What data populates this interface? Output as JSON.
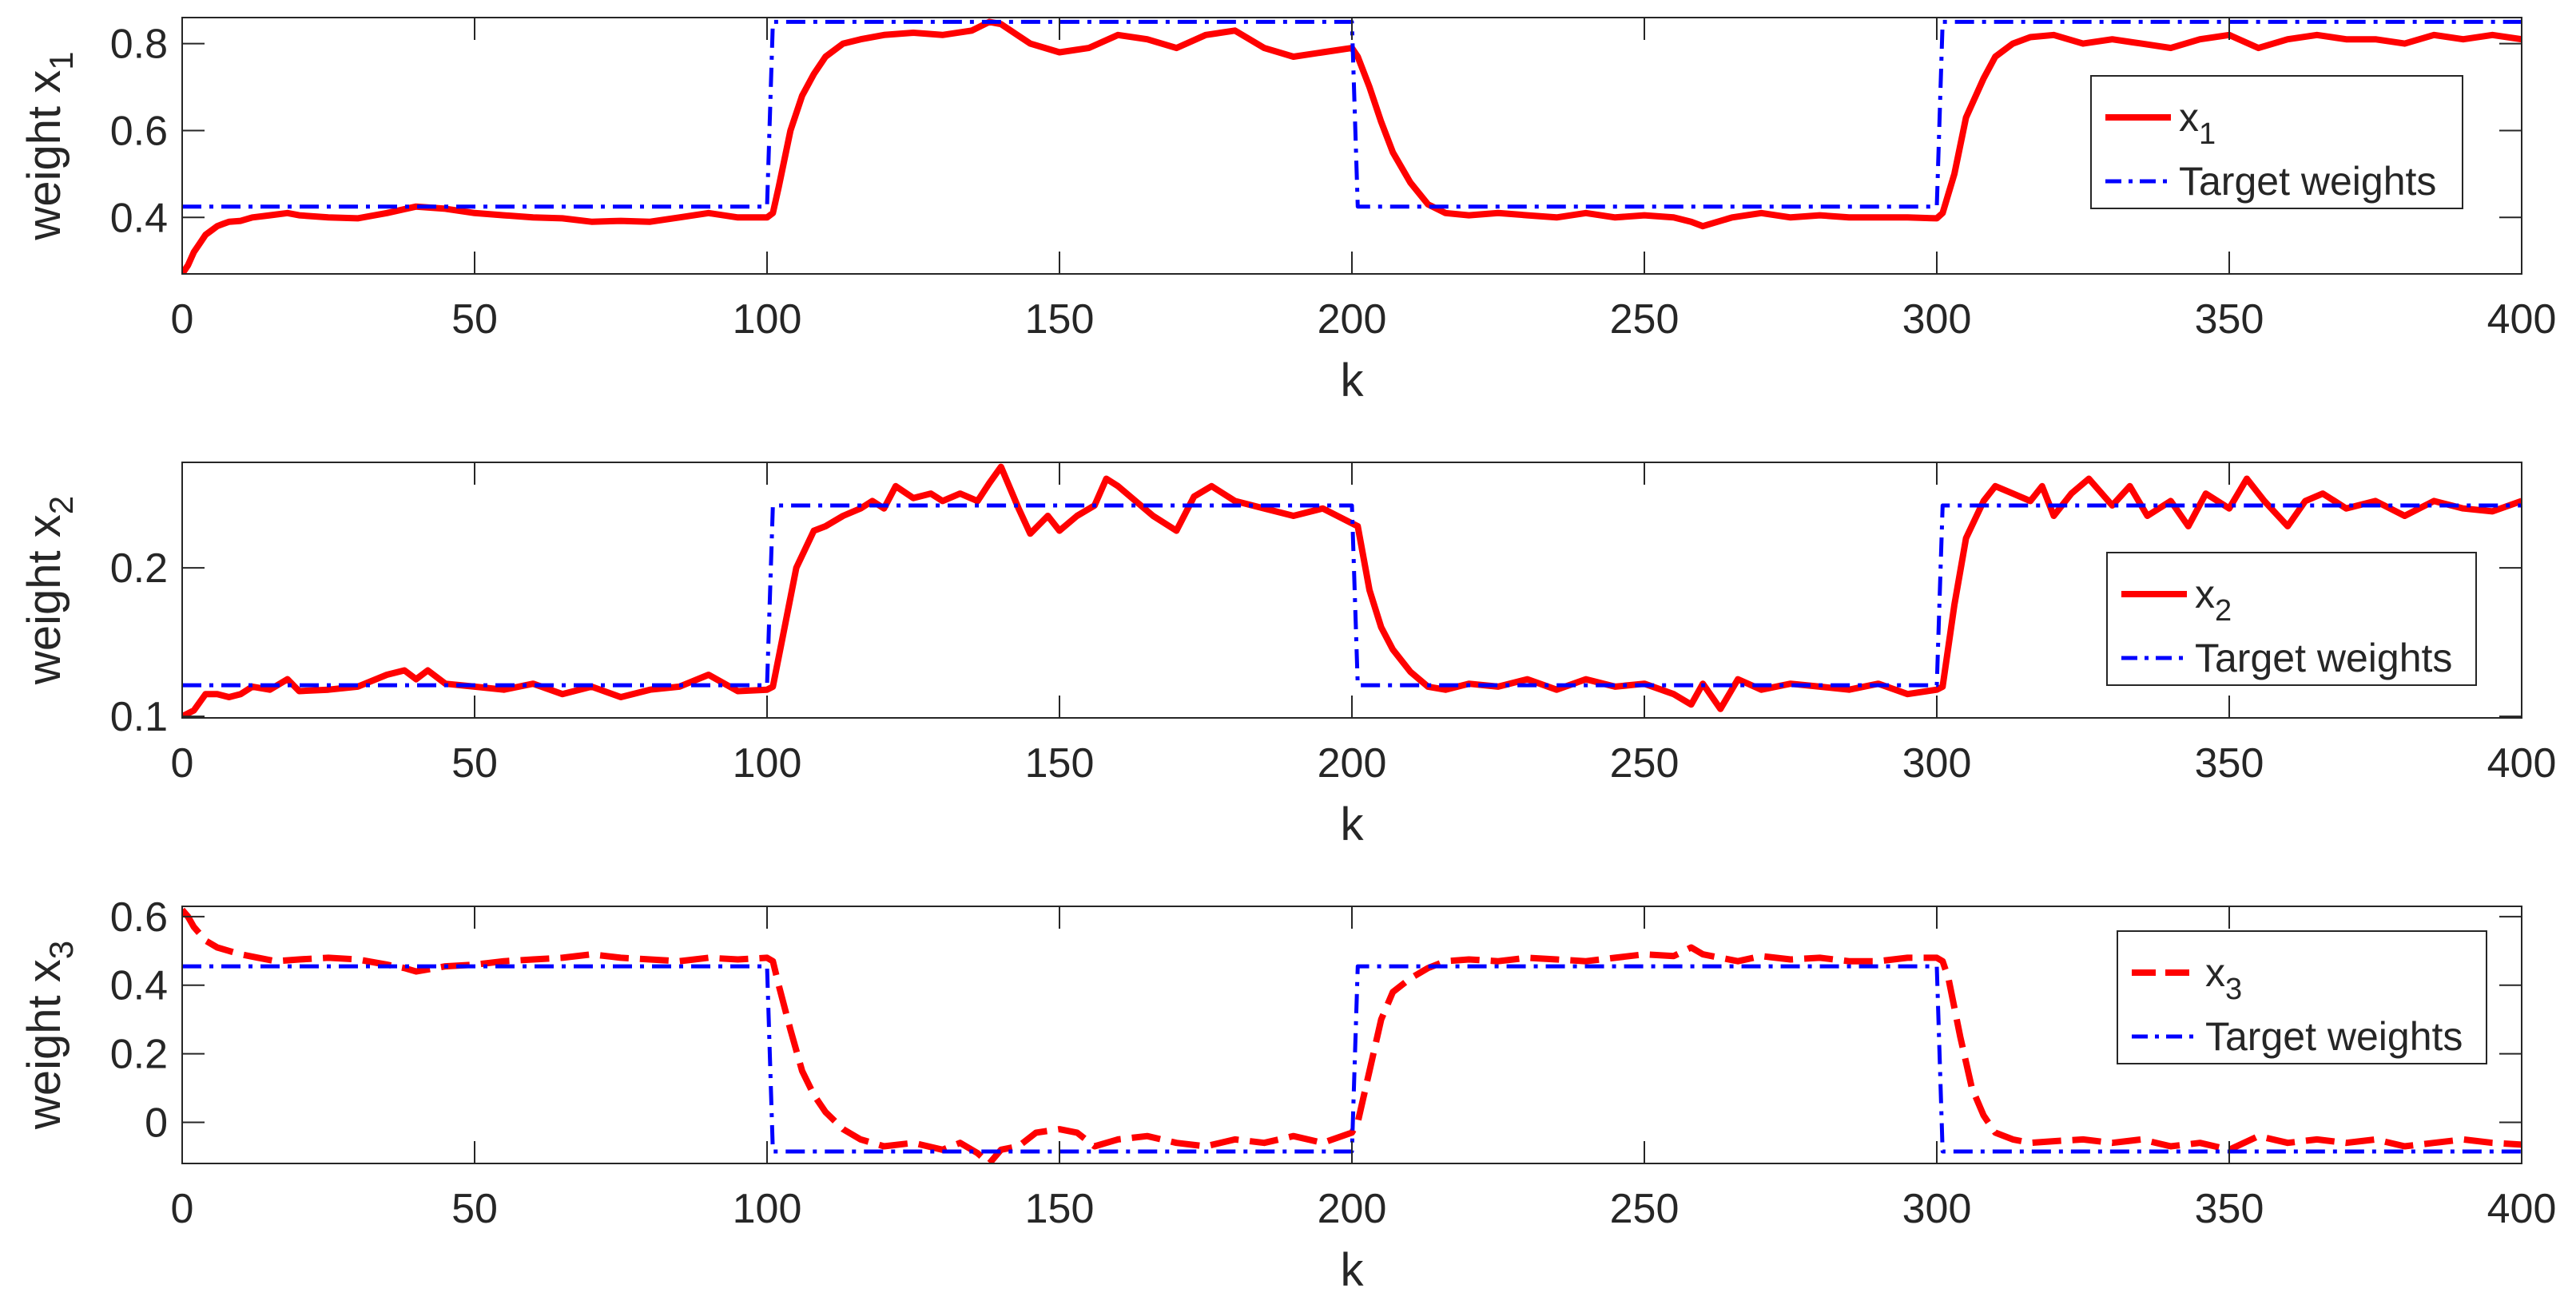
{
  "colors": {
    "estimate": "#ff0000",
    "target": "#0000ff",
    "axes": "#262626",
    "background": "#ffffff"
  },
  "chart_data": [
    {
      "type": "line",
      "ylabel_text": "weight x",
      "ylabel_sub": "1",
      "xlabel": "k",
      "xlim": [
        0,
        400
      ],
      "ylim": [
        0.27,
        0.86
      ],
      "xticks": [
        0,
        50,
        100,
        150,
        200,
        250,
        300,
        350,
        400
      ],
      "xtick_labels": [
        "0",
        "50",
        "100",
        "150",
        "200",
        "250",
        "300",
        "350",
        "400"
      ],
      "yticks": [
        0.4,
        0.6,
        0.8
      ],
      "ytick_labels": [
        "0.4",
        "0.6",
        "0.8"
      ],
      "grid": false,
      "legend_position": "right",
      "series": [
        {
          "name": "x",
          "name_sub": "1",
          "style": "solid",
          "x": [
            0,
            1,
            2,
            3,
            4,
            5,
            6,
            7,
            8,
            10,
            12,
            15,
            18,
            20,
            25,
            30,
            35,
            40,
            45,
            50,
            55,
            60,
            65,
            70,
            75,
            80,
            85,
            90,
            95,
            100,
            101,
            102,
            104,
            106,
            108,
            110,
            113,
            116,
            120,
            125,
            130,
            135,
            138,
            140,
            145,
            150,
            155,
            160,
            165,
            170,
            175,
            180,
            185,
            190,
            195,
            200,
            201,
            203,
            205,
            207,
            210,
            213,
            216,
            220,
            225,
            230,
            235,
            240,
            245,
            250,
            255,
            258,
            260,
            265,
            270,
            275,
            280,
            285,
            290,
            295,
            300,
            301,
            303,
            305,
            308,
            310,
            313,
            316,
            320,
            325,
            330,
            335,
            340,
            345,
            350,
            355,
            360,
            365,
            370,
            375,
            380,
            385,
            390,
            395,
            400
          ],
          "y": [
            0.27,
            0.29,
            0.32,
            0.34,
            0.36,
            0.37,
            0.38,
            0.385,
            0.39,
            0.392,
            0.4,
            0.405,
            0.41,
            0.405,
            0.4,
            0.398,
            0.41,
            0.425,
            0.42,
            0.41,
            0.405,
            0.4,
            0.398,
            0.39,
            0.392,
            0.39,
            0.4,
            0.41,
            0.4,
            0.4,
            0.41,
            0.47,
            0.6,
            0.68,
            0.73,
            0.77,
            0.8,
            0.81,
            0.82,
            0.825,
            0.82,
            0.83,
            0.85,
            0.845,
            0.8,
            0.78,
            0.79,
            0.82,
            0.81,
            0.79,
            0.82,
            0.83,
            0.79,
            0.77,
            0.78,
            0.79,
            0.77,
            0.7,
            0.62,
            0.55,
            0.48,
            0.43,
            0.41,
            0.405,
            0.41,
            0.405,
            0.4,
            0.41,
            0.4,
            0.405,
            0.4,
            0.39,
            0.38,
            0.4,
            0.41,
            0.4,
            0.405,
            0.4,
            0.4,
            0.4,
            0.398,
            0.41,
            0.5,
            0.63,
            0.72,
            0.77,
            0.8,
            0.815,
            0.82,
            0.8,
            0.81,
            0.8,
            0.79,
            0.81,
            0.82,
            0.79,
            0.81,
            0.82,
            0.81,
            0.81,
            0.8,
            0.82,
            0.81,
            0.82,
            0.81
          ]
        },
        {
          "name": "Target weights",
          "style": "dashdot",
          "x": [
            0,
            100,
            101,
            200,
            201,
            300,
            301,
            400
          ],
          "y": [
            0.425,
            0.425,
            0.85,
            0.85,
            0.425,
            0.425,
            0.85,
            0.85
          ]
        }
      ]
    },
    {
      "type": "line",
      "ylabel_text": "weight x",
      "ylabel_sub": "2",
      "xlabel": "k",
      "xlim": [
        0,
        400
      ],
      "ylim": [
        0.099,
        0.271
      ],
      "xticks": [
        0,
        50,
        100,
        150,
        200,
        250,
        300,
        350,
        400
      ],
      "xtick_labels": [
        "0",
        "50",
        "100",
        "150",
        "200",
        "250",
        "300",
        "350",
        "400"
      ],
      "yticks": [
        0.1,
        0.2
      ],
      "ytick_labels": [
        "0.1",
        "0.2"
      ],
      "grid": false,
      "legend_position": "right",
      "series": [
        {
          "name": "x",
          "name_sub": "2",
          "style": "solid",
          "x": [
            0,
            2,
            4,
            6,
            8,
            10,
            12,
            15,
            18,
            20,
            25,
            30,
            35,
            38,
            40,
            42,
            45,
            50,
            55,
            60,
            65,
            70,
            75,
            80,
            85,
            90,
            95,
            100,
            101,
            103,
            105,
            108,
            110,
            113,
            116,
            118,
            120,
            122,
            125,
            128,
            130,
            133,
            136,
            138,
            140,
            143,
            145,
            148,
            150,
            153,
            156,
            158,
            160,
            163,
            166,
            170,
            173,
            176,
            180,
            185,
            190,
            195,
            200,
            201,
            203,
            205,
            207,
            210,
            213,
            216,
            220,
            225,
            230,
            235,
            240,
            245,
            250,
            255,
            258,
            260,
            263,
            266,
            270,
            275,
            280,
            285,
            290,
            295,
            300,
            301,
            303,
            305,
            308,
            310,
            313,
            316,
            318,
            320,
            323,
            326,
            330,
            333,
            336,
            340,
            343,
            346,
            350,
            353,
            356,
            360,
            363,
            366,
            370,
            375,
            380,
            385,
            390,
            395,
            400
          ],
          "y": [
            0.1,
            0.104,
            0.115,
            0.115,
            0.113,
            0.115,
            0.12,
            0.118,
            0.125,
            0.117,
            0.118,
            0.12,
            0.128,
            0.131,
            0.125,
            0.131,
            0.122,
            0.12,
            0.118,
            0.122,
            0.115,
            0.12,
            0.113,
            0.118,
            0.12,
            0.128,
            0.117,
            0.118,
            0.12,
            0.16,
            0.2,
            0.225,
            0.228,
            0.235,
            0.24,
            0.245,
            0.24,
            0.255,
            0.247,
            0.25,
            0.245,
            0.25,
            0.245,
            0.257,
            0.268,
            0.24,
            0.223,
            0.235,
            0.225,
            0.235,
            0.242,
            0.26,
            0.255,
            0.245,
            0.235,
            0.225,
            0.248,
            0.255,
            0.245,
            0.24,
            0.235,
            0.24,
            0.23,
            0.228,
            0.185,
            0.16,
            0.145,
            0.13,
            0.12,
            0.118,
            0.122,
            0.12,
            0.125,
            0.118,
            0.125,
            0.12,
            0.122,
            0.115,
            0.108,
            0.122,
            0.105,
            0.125,
            0.118,
            0.122,
            0.12,
            0.118,
            0.122,
            0.115,
            0.118,
            0.12,
            0.175,
            0.22,
            0.245,
            0.255,
            0.25,
            0.245,
            0.255,
            0.235,
            0.25,
            0.26,
            0.242,
            0.255,
            0.235,
            0.245,
            0.228,
            0.25,
            0.24,
            0.26,
            0.245,
            0.228,
            0.245,
            0.25,
            0.24,
            0.245,
            0.235,
            0.245,
            0.24,
            0.238,
            0.245
          ]
        },
        {
          "name": "Target weights",
          "style": "dashdot",
          "x": [
            0,
            100,
            101,
            200,
            201,
            300,
            301,
            400
          ],
          "y": [
            0.121,
            0.121,
            0.242,
            0.242,
            0.121,
            0.121,
            0.242,
            0.242
          ]
        }
      ]
    },
    {
      "type": "line",
      "ylabel_text": "weight x",
      "ylabel_sub": "3",
      "xlabel": "k",
      "xlim": [
        0,
        400
      ],
      "ylim": [
        -0.12,
        0.63
      ],
      "xticks": [
        0,
        50,
        100,
        150,
        200,
        250,
        300,
        350,
        400
      ],
      "xtick_labels": [
        "0",
        "50",
        "100",
        "150",
        "200",
        "250",
        "300",
        "350",
        "400"
      ],
      "yticks": [
        0,
        0.2,
        0.4,
        0.6
      ],
      "ytick_labels": [
        "0",
        "0.2",
        "0.4",
        "0.6"
      ],
      "grid": false,
      "legend_position": "right",
      "series": [
        {
          "name": "x",
          "name_sub": "3",
          "style": "dashed",
          "x": [
            0,
            1,
            2,
            3,
            4,
            6,
            8,
            10,
            13,
            16,
            20,
            25,
            30,
            35,
            38,
            40,
            45,
            50,
            55,
            60,
            65,
            70,
            75,
            80,
            85,
            90,
            95,
            100,
            101,
            102,
            104,
            106,
            108,
            110,
            113,
            116,
            120,
            125,
            130,
            133,
            136,
            138,
            140,
            143,
            146,
            150,
            153,
            156,
            160,
            165,
            170,
            175,
            180,
            185,
            190,
            195,
            200,
            201,
            203,
            205,
            207,
            210,
            213,
            216,
            220,
            225,
            230,
            235,
            240,
            245,
            250,
            255,
            258,
            260,
            263,
            266,
            270,
            275,
            280,
            285,
            290,
            295,
            300,
            301,
            302,
            304,
            306,
            308,
            310,
            313,
            316,
            320,
            325,
            330,
            335,
            340,
            345,
            350,
            355,
            360,
            365,
            370,
            375,
            380,
            385,
            390,
            395,
            400
          ],
          "y": [
            0.62,
            0.6,
            0.57,
            0.55,
            0.53,
            0.51,
            0.5,
            0.49,
            0.48,
            0.47,
            0.475,
            0.48,
            0.475,
            0.46,
            0.45,
            0.44,
            0.455,
            0.46,
            0.47,
            0.475,
            0.48,
            0.49,
            0.48,
            0.475,
            0.47,
            0.48,
            0.475,
            0.48,
            0.47,
            0.4,
            0.27,
            0.15,
            0.08,
            0.03,
            -0.02,
            -0.05,
            -0.07,
            -0.06,
            -0.08,
            -0.06,
            -0.09,
            -0.12,
            -0.08,
            -0.07,
            -0.03,
            -0.02,
            -0.03,
            -0.07,
            -0.05,
            -0.04,
            -0.06,
            -0.07,
            -0.05,
            -0.06,
            -0.04,
            -0.06,
            -0.03,
            0.0,
            0.15,
            0.3,
            0.38,
            0.42,
            0.45,
            0.47,
            0.475,
            0.47,
            0.48,
            0.475,
            0.47,
            0.48,
            0.49,
            0.485,
            0.51,
            0.49,
            0.48,
            0.47,
            0.485,
            0.475,
            0.48,
            0.47,
            0.47,
            0.48,
            0.48,
            0.47,
            0.42,
            0.25,
            0.1,
            0.02,
            -0.03,
            -0.05,
            -0.06,
            -0.055,
            -0.05,
            -0.06,
            -0.05,
            -0.07,
            -0.06,
            -0.08,
            -0.04,
            -0.06,
            -0.05,
            -0.06,
            -0.05,
            -0.07,
            -0.06,
            -0.05,
            -0.06,
            -0.065
          ]
        },
        {
          "name": "Target weights",
          "style": "dashdot",
          "x": [
            0,
            100,
            101,
            200,
            201,
            300,
            301,
            400
          ],
          "y": [
            0.455,
            0.455,
            -0.085,
            -0.085,
            0.455,
            0.455,
            -0.085,
            -0.085
          ]
        }
      ]
    }
  ]
}
